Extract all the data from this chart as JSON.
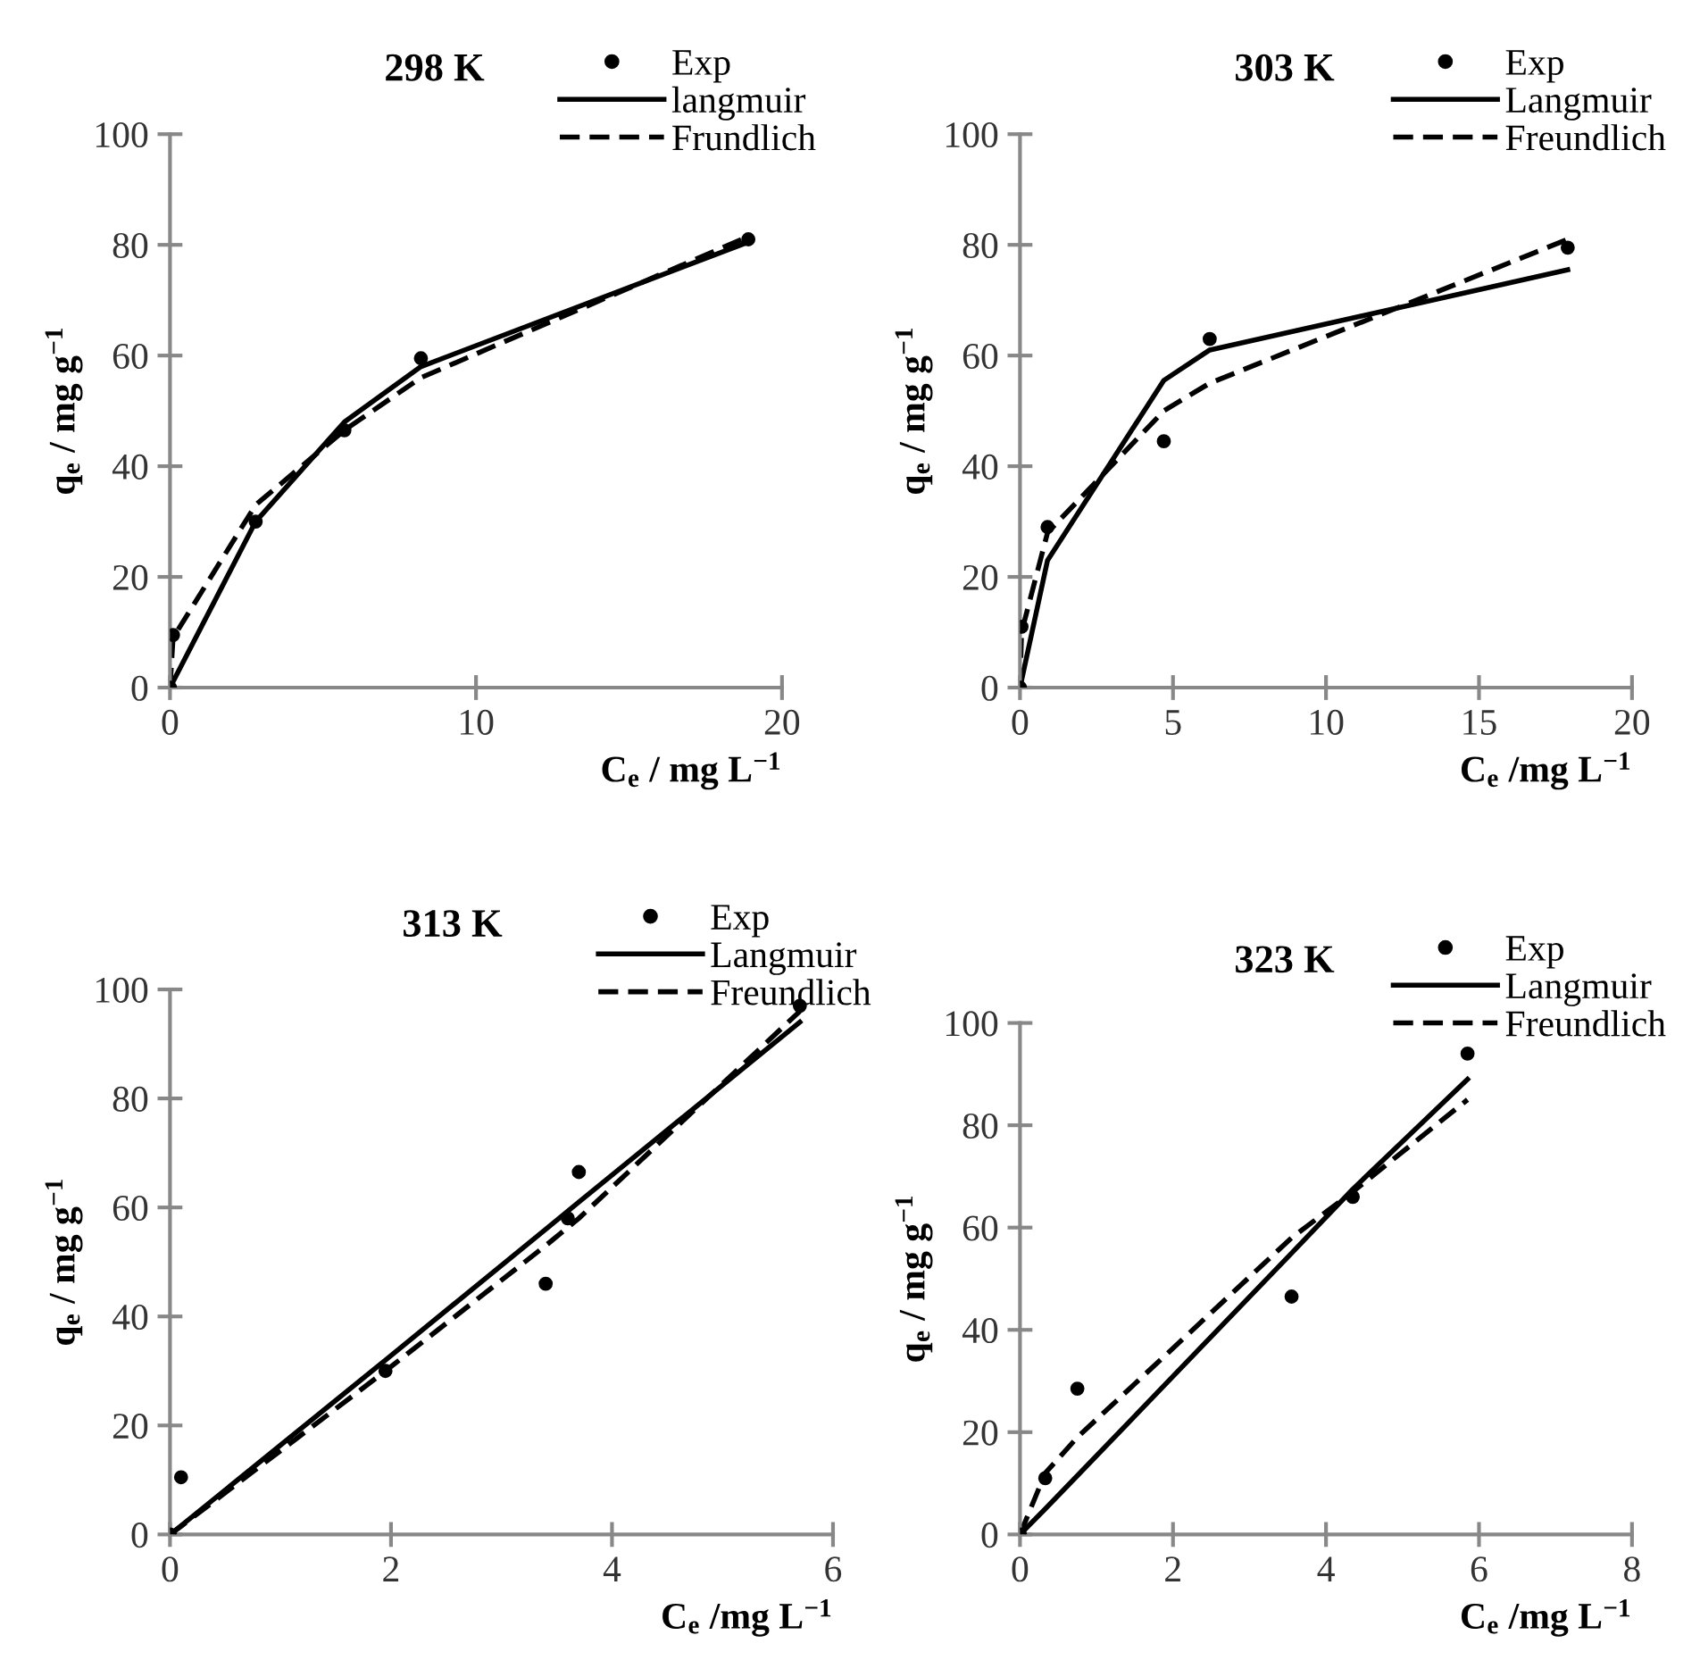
{
  "chart_data": [
    {
      "type": "scatter",
      "title": "298 K",
      "xlabel": "C$_{e}$ / mg L$^{−1}$",
      "ylabel": "q$_{e}$ / mg g$^{−1}$",
      "xlim": [
        0,
        20
      ],
      "xticks": [
        0,
        10,
        20
      ],
      "ylim": [
        0,
        100
      ],
      "yticks": [
        0,
        20,
        40,
        60,
        80,
        100
      ],
      "grid": false,
      "legend": "top right",
      "series": [
        {
          "name": "Exp",
          "type": "scatter",
          "marker": "circle",
          "color": "#000000",
          "x": [
            0,
            0.1,
            2.8,
            5.7,
            8.2,
            18.9
          ],
          "values": [
            0,
            9.5,
            30,
            46.5,
            59.5,
            81
          ]
        },
        {
          "name": "langmuir",
          "type": "line",
          "line_style": "solid",
          "color": "#000000",
          "x": [
            0,
            2.8,
            5.7,
            8.2,
            18.9
          ],
          "values": [
            0,
            30,
            48,
            58,
            80.5
          ]
        },
        {
          "name": "Frundlich",
          "type": "line",
          "line_style": "dashed",
          "color": "#000000",
          "x": [
            0,
            0.1,
            2.8,
            5.7,
            8.2,
            18.9
          ],
          "values": [
            0,
            9,
            33,
            46.5,
            56,
            81.5
          ]
        }
      ]
    },
    {
      "type": "scatter",
      "title": "303 K",
      "xlabel": "C$_{e}$ /mg L$^{−1}$",
      "ylabel": "q$_{e}$ / mg g$^{−1}$",
      "xlim": [
        0,
        20
      ],
      "xticks": [
        0,
        5,
        10,
        15,
        20
      ],
      "ylim": [
        0,
        100
      ],
      "yticks": [
        0,
        20,
        40,
        60,
        80,
        100
      ],
      "grid": false,
      "legend": "top right",
      "series": [
        {
          "name": "Exp",
          "type": "scatter",
          "marker": "circle",
          "color": "#000000",
          "x": [
            0,
            0.05,
            0.9,
            4.7,
            6.2,
            17.9
          ],
          "values": [
            0,
            11,
            29,
            44.5,
            63,
            79.5
          ]
        },
        {
          "name": "Langmuir",
          "type": "line",
          "line_style": "solid",
          "color": "#000000",
          "x": [
            0,
            0.9,
            4.7,
            6.2,
            17.9
          ],
          "values": [
            0,
            23,
            55.5,
            61,
            75.5
          ]
        },
        {
          "name": "Freundlich",
          "type": "line",
          "line_style": "dashed",
          "color": "#000000",
          "x": [
            0,
            0.05,
            0.9,
            4.7,
            6.2,
            17.9
          ],
          "values": [
            0,
            10,
            28,
            50,
            55,
            81
          ]
        }
      ]
    },
    {
      "type": "scatter",
      "title": "313 K",
      "xlabel": "C$_{e}$ /mg L$^{−1}$",
      "ylabel": "q$_{e}$ / mg g$^{−1}$",
      "xlim": [
        0,
        6
      ],
      "xticks": [
        0,
        2,
        4,
        6
      ],
      "ylim": [
        0,
        100
      ],
      "yticks": [
        0,
        20,
        40,
        60,
        80,
        100
      ],
      "grid": false,
      "legend": "top right",
      "series": [
        {
          "name": "Exp",
          "type": "scatter",
          "marker": "circle",
          "color": "#000000",
          "x": [
            0,
            0.1,
            1.95,
            3.4,
            3.6,
            3.7,
            5.7
          ],
          "values": [
            0,
            10.5,
            30,
            46,
            58,
            66.5,
            97
          ]
        },
        {
          "name": "Langmuir",
          "type": "line",
          "line_style": "solid",
          "color": "#000000",
          "x": [
            0,
            0.1,
            1.95,
            3.4,
            3.7,
            5.7
          ],
          "values": [
            0,
            1.6,
            32,
            56,
            61,
            94
          ]
        },
        {
          "name": "Freundlich",
          "type": "line",
          "line_style": "dashed",
          "color": "#000000",
          "x": [
            0,
            0.1,
            1.95,
            3.4,
            3.7,
            5.7
          ],
          "values": [
            0,
            1.5,
            30,
            53,
            58,
            96
          ]
        }
      ]
    },
    {
      "type": "scatter",
      "title": "323 K",
      "xlabel": "C$_{e}$ /mg L$^{−1}$",
      "ylabel": "q$_{e}$ / mg g$^{−1}$",
      "xlim": [
        0,
        8
      ],
      "xticks": [
        0,
        2,
        4,
        6,
        8
      ],
      "ylim": [
        0,
        100
      ],
      "yticks": [
        0,
        20,
        40,
        60,
        80,
        100
      ],
      "grid": false,
      "legend": "top right",
      "series": [
        {
          "name": "Exp",
          "type": "scatter",
          "marker": "circle",
          "color": "#000000",
          "x": [
            0,
            0.33,
            0.75,
            3.55,
            4.35,
            5.85
          ],
          "values": [
            0,
            11,
            28.5,
            46.5,
            66,
            94
          ]
        },
        {
          "name": "Langmuir",
          "type": "line",
          "line_style": "solid",
          "color": "#000000",
          "x": [
            0,
            0.33,
            0.75,
            3.55,
            4.35,
            5.85
          ],
          "values": [
            0,
            5,
            11.5,
            55,
            67.5,
            89
          ]
        },
        {
          "name": "Freundlich",
          "type": "line",
          "line_style": "dashed",
          "color": "#000000",
          "x": [
            0,
            0.33,
            0.75,
            3.55,
            4.35,
            5.85
          ],
          "values": [
            0,
            12,
            19,
            58,
            67,
            85
          ]
        }
      ]
    }
  ]
}
